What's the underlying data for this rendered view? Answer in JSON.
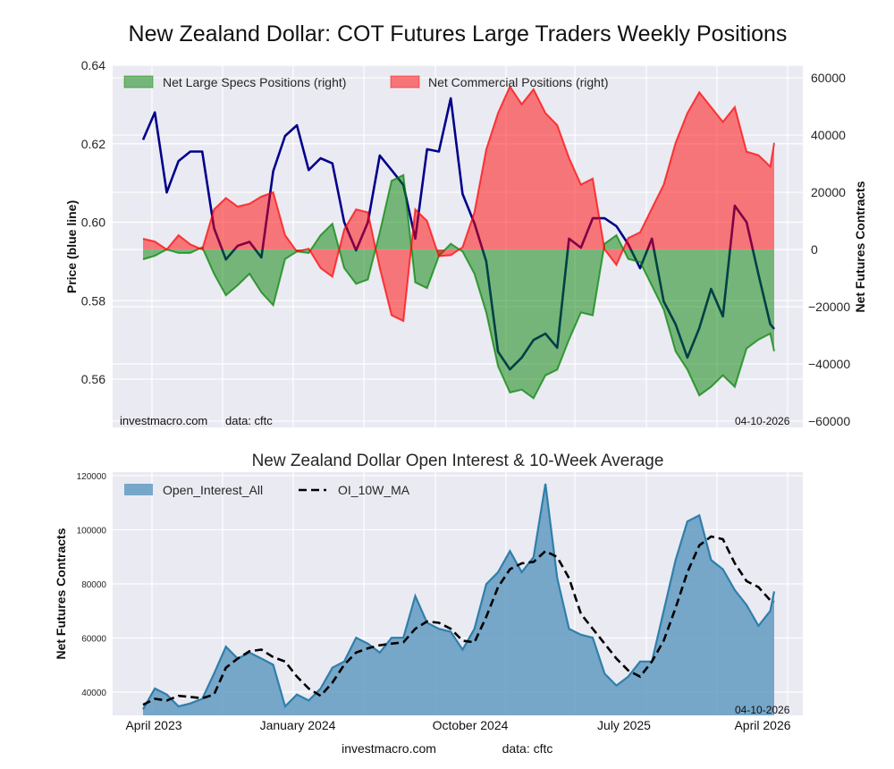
{
  "chart_data": [
    {
      "type": "line+area",
      "title": "New Zealand Dollar: COT Futures Large Traders Weekly Positions",
      "ylabel_left": "Price (blue line)",
      "ylabel_right": "Net Futures Contracts",
      "ylim_left": [
        0.5477,
        0.64
      ],
      "ylim_right": [
        -62200,
        64400
      ],
      "yticks_left": [
        "0.64",
        "0.62",
        "0.60",
        "0.58",
        "0.56"
      ],
      "yticks_right": [
        "60000",
        "40000",
        "20000",
        "0",
        "−20000",
        "−40000",
        "−60000"
      ],
      "grid": true,
      "legend_position": "top-left",
      "source_text": "investmacro.com",
      "data_text": "data: cftc",
      "date_label": "04-10-2026",
      "colors": {
        "price": "#00008b",
        "specs": "#008000",
        "commercial": "#ff0000",
        "background": "#eaeaf2"
      },
      "dates": [
        "2023-03-14",
        "2023-04-04",
        "2023-04-25",
        "2023-05-16",
        "2023-06-06",
        "2023-06-27",
        "2023-07-18",
        "2023-08-08",
        "2023-08-29",
        "2023-09-19",
        "2023-10-10",
        "2023-10-31",
        "2023-11-21",
        "2023-12-12",
        "2024-01-02",
        "2024-01-23",
        "2024-02-13",
        "2024-03-05",
        "2024-03-26",
        "2024-04-16",
        "2024-05-07",
        "2024-05-28",
        "2024-06-18",
        "2024-07-09",
        "2024-07-30",
        "2024-08-20",
        "2024-09-10",
        "2024-10-01",
        "2024-10-22",
        "2024-11-12",
        "2024-12-03",
        "2024-12-24",
        "2025-01-14",
        "2025-02-04",
        "2025-02-25",
        "2025-03-18",
        "2025-04-08",
        "2025-04-29",
        "2025-05-20",
        "2025-06-10",
        "2025-07-01",
        "2025-07-22",
        "2025-08-12",
        "2025-09-02",
        "2025-09-23",
        "2025-10-14",
        "2025-11-04",
        "2025-11-25",
        "2025-12-16",
        "2026-01-06",
        "2026-01-27",
        "2026-02-17",
        "2026-03-10",
        "2026-03-31",
        "2026-04-07"
      ],
      "series": [
        {
          "name": "Price",
          "axis": "left",
          "values": [
            0.621,
            0.628,
            0.6076,
            0.6156,
            0.618,
            0.618,
            0.5985,
            0.5905,
            0.594,
            0.595,
            0.591,
            0.613,
            0.622,
            0.6247,
            0.6133,
            0.6163,
            0.615,
            0.6,
            0.5928,
            0.6,
            0.617,
            0.6133,
            0.6095,
            0.5958,
            0.6186,
            0.618,
            0.6316,
            0.6072,
            0.5997,
            0.59,
            0.567,
            0.5625,
            0.5655,
            0.57,
            0.5716,
            0.568,
            0.5958,
            0.5935,
            0.601,
            0.601,
            0.599,
            0.5944,
            0.5883,
            0.5958,
            0.5798,
            0.574,
            0.5655,
            0.573,
            0.583,
            0.576,
            0.6042,
            0.6,
            0.5867,
            0.574,
            0.5728
          ]
        },
        {
          "name": "Net Large Specs Positions (right)",
          "axis": "right",
          "values": [
            -3440,
            -2200,
            0,
            -1200,
            -1200,
            800,
            -8500,
            -16000,
            -12500,
            -8500,
            -15000,
            -19500,
            -3300,
            -700,
            -1200,
            5000,
            9000,
            -6500,
            -12000,
            -10500,
            6000,
            24000,
            26000,
            -11500,
            -13500,
            -2300,
            2000,
            -700,
            -8500,
            -22000,
            -40800,
            -50000,
            -49000,
            -52000,
            -44000,
            -42000,
            -31500,
            -22000,
            -23000,
            2000,
            5000,
            -3300,
            -4400,
            -12700,
            -21000,
            -35600,
            -42000,
            -51000,
            -48000,
            -44000,
            -48000,
            -34600,
            -31500,
            -29400,
            -35600
          ]
        },
        {
          "name": "Net Commercial Positions (right)",
          "axis": "right",
          "values": [
            3750,
            2800,
            0,
            5000,
            1800,
            0,
            14000,
            18000,
            15000,
            16000,
            18500,
            20000,
            5000,
            -700,
            300,
            -6500,
            -9500,
            7000,
            14000,
            13000,
            -6500,
            -23000,
            -25000,
            14000,
            10000,
            -2300,
            -2000,
            800,
            13000,
            35000,
            47700,
            57000,
            50800,
            56000,
            47700,
            43500,
            32000,
            22700,
            24800,
            0,
            -5400,
            4000,
            6000,
            14400,
            22700,
            37300,
            47700,
            55000,
            49800,
            44600,
            49800,
            34200,
            33000,
            29000,
            37300
          ]
        }
      ]
    },
    {
      "type": "area+line",
      "title": "New Zealand Dollar Open Interest & 10-Week Average",
      "ylabel": "Net Futures Contracts",
      "ylim": [
        31400,
        121300
      ],
      "yticks": [
        "120000",
        "100000",
        "80000",
        "60000",
        "40000"
      ],
      "xticks": [
        "April 2023",
        "January 2024",
        "October 2024",
        "July 2025",
        "April 2026"
      ],
      "grid": true,
      "legend_position": "top-left",
      "date_label": "04-10-2026",
      "colors": {
        "open_interest": "#4f8fba",
        "ma": "#000000"
      },
      "dates_ref": "same as first chart",
      "series": [
        {
          "name": "Open_Interest_All",
          "values": [
            33600,
            41300,
            39100,
            34700,
            35800,
            37500,
            46800,
            56800,
            52400,
            54600,
            52400,
            50100,
            34700,
            39100,
            36900,
            41300,
            49000,
            51300,
            60100,
            57900,
            54600,
            60100,
            60100,
            75500,
            65600,
            63400,
            62300,
            55700,
            63400,
            79900,
            84300,
            92100,
            84300,
            89900,
            117000,
            82100,
            63400,
            61200,
            60100,
            46800,
            42400,
            45700,
            51300,
            51300,
            70000,
            88800,
            103100,
            105300,
            88800,
            85400,
            77700,
            72200,
            64500,
            70000,
            77200
          ]
        },
        {
          "name": "OI_10W_MA",
          "values": [
            35300,
            37500,
            36900,
            38600,
            38200,
            37700,
            39100,
            49000,
            52400,
            55100,
            55700,
            52900,
            51300,
            45700,
            41300,
            38600,
            43500,
            50100,
            54600,
            56200,
            57300,
            57900,
            58400,
            63400,
            66100,
            65600,
            63400,
            59000,
            58400,
            67800,
            78800,
            85400,
            87600,
            88100,
            92100,
            89900,
            82100,
            68900,
            63400,
            57900,
            52400,
            48000,
            45700,
            51300,
            59000,
            71100,
            84300,
            94200,
            97500,
            96500,
            87600,
            81000,
            78800,
            73900,
            73300
          ]
        }
      ]
    }
  ],
  "footer": {
    "site": "investmacro.com",
    "data": "data: cftc"
  }
}
